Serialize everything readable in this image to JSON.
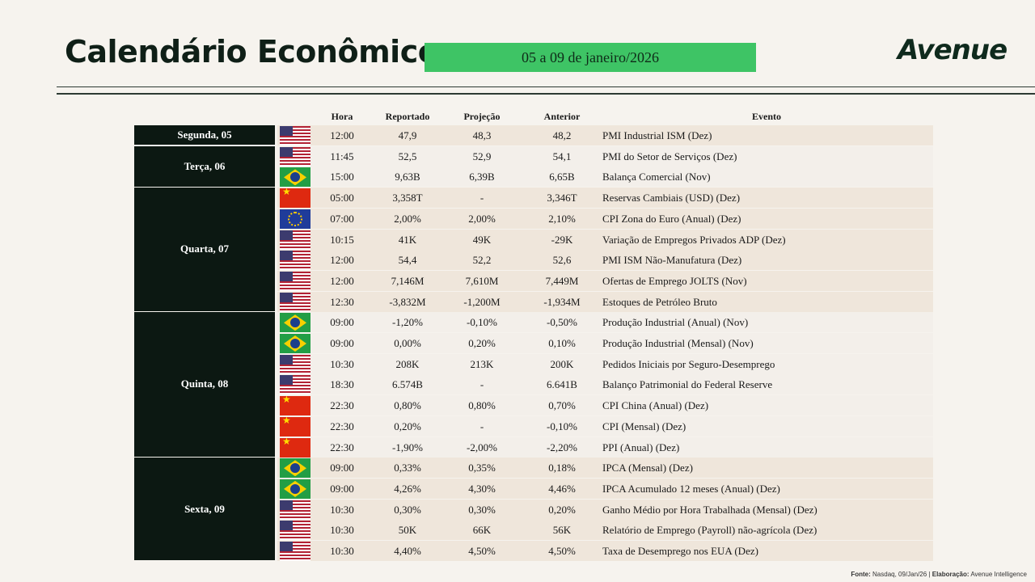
{
  "title": "Calendário Econômico",
  "date_range": "05 a 09 de janeiro/2026",
  "logo_text": "Avenue",
  "columns": {
    "hora": "Hora",
    "reportado": "Reportado",
    "projecao": "Projeção",
    "anterior": "Anterior",
    "evento": "Evento"
  },
  "days": [
    {
      "label": "Segunda, 05",
      "rows": 1
    },
    {
      "label": "Terça, 06",
      "rows": 2
    },
    {
      "label": "Quarta, 07",
      "rows": 6
    },
    {
      "label": "Quinta, 08",
      "rows": 7
    },
    {
      "label": "Sexta, 09",
      "rows": 5
    }
  ],
  "events": [
    {
      "flag": "us-flag-icon",
      "hora": "12:00",
      "reportado": "47,9",
      "projecao": "48,3",
      "anterior": "48,2",
      "evento": "PMI Industrial ISM (Dez)"
    },
    {
      "flag": "us-flag-icon",
      "hora": "11:45",
      "reportado": "52,5",
      "projecao": "52,9",
      "anterior": "54,1",
      "evento": "PMI do Setor de Serviços (Dez)"
    },
    {
      "flag": "br-flag-icon",
      "hora": "15:00",
      "reportado": "9,63B",
      "projecao": "6,39B",
      "anterior": "6,65B",
      "evento": "Balança Comercial (Nov)"
    },
    {
      "flag": "cn-flag-icon",
      "hora": "05:00",
      "reportado": "3,358T",
      "projecao": "-",
      "anterior": "3,346T",
      "evento": "Reservas Cambiais (USD) (Dez)"
    },
    {
      "flag": "eu-flag-icon",
      "hora": "07:00",
      "reportado": "2,00%",
      "projecao": "2,00%",
      "anterior": "2,10%",
      "evento": "CPI Zona do Euro (Anual) (Dez)"
    },
    {
      "flag": "us-flag-icon",
      "hora": "10:15",
      "reportado": "41K",
      "projecao": "49K",
      "anterior": "-29K",
      "evento": "Variação de Empregos Privados ADP (Dez)"
    },
    {
      "flag": "us-flag-icon",
      "hora": "12:00",
      "reportado": "54,4",
      "projecao": "52,2",
      "anterior": "52,6",
      "evento": "PMI ISM Não-Manufatura (Dez)"
    },
    {
      "flag": "us-flag-icon",
      "hora": "12:00",
      "reportado": "7,146M",
      "projecao": "7,610M",
      "anterior": "7,449M",
      "evento": "Ofertas de Emprego JOLTS (Nov)"
    },
    {
      "flag": "us-flag-icon",
      "hora": "12:30",
      "reportado": "-3,832M",
      "projecao": "-1,200M",
      "anterior": "-1,934M",
      "evento": "Estoques de Petróleo Bruto"
    },
    {
      "flag": "br-flag-icon",
      "hora": "09:00",
      "reportado": "-1,20%",
      "projecao": "-0,10%",
      "anterior": "-0,50%",
      "evento": "Produção Industrial (Anual) (Nov)"
    },
    {
      "flag": "br-flag-icon",
      "hora": "09:00",
      "reportado": "0,00%",
      "projecao": "0,20%",
      "anterior": "0,10%",
      "evento": "Produção Industrial (Mensal) (Nov)"
    },
    {
      "flag": "us-flag-icon",
      "hora": "10:30",
      "reportado": "208K",
      "projecao": "213K",
      "anterior": "200K",
      "evento": "Pedidos Iniciais por Seguro-Desemprego"
    },
    {
      "flag": "us-flag-icon",
      "hora": "18:30",
      "reportado": "6.574B",
      "projecao": "-",
      "anterior": "6.641B",
      "evento": "Balanço Patrimonial do Federal Reserve"
    },
    {
      "flag": "cn-flag-icon",
      "hora": "22:30",
      "reportado": "0,80%",
      "projecao": "0,80%",
      "anterior": "0,70%",
      "evento": "CPI China (Anual) (Dez)"
    },
    {
      "flag": "cn-flag-icon",
      "hora": "22:30",
      "reportado": "0,20%",
      "projecao": "-",
      "anterior": "-0,10%",
      "evento": "CPI (Mensal) (Dez)"
    },
    {
      "flag": "cn-flag-icon",
      "hora": "22:30",
      "reportado": "-1,90%",
      "projecao": "-2,00%",
      "anterior": "-2,20%",
      "evento": "PPI (Anual) (Dez)"
    },
    {
      "flag": "br-flag-icon",
      "hora": "09:00",
      "reportado": "0,33%",
      "projecao": "0,35%",
      "anterior": "0,18%",
      "evento": "IPCA (Mensal) (Dez)"
    },
    {
      "flag": "br-flag-icon",
      "hora": "09:00",
      "reportado": "4,26%",
      "projecao": "4,30%",
      "anterior": "4,46%",
      "evento": "IPCA Acumulado 12 meses (Anual) (Dez)"
    },
    {
      "flag": "us-flag-icon",
      "hora": "10:30",
      "reportado": "0,30%",
      "projecao": "0,30%",
      "anterior": "0,20%",
      "evento": "Ganho Médio por Hora Trabalhada (Mensal) (Dez)"
    },
    {
      "flag": "us-flag-icon",
      "hora": "10:30",
      "reportado": "50K",
      "projecao": "66K",
      "anterior": "56K",
      "evento": "Relatório de Emprego (Payroll) não-agrícola (Dez)"
    },
    {
      "flag": "us-flag-icon",
      "hora": "10:30",
      "reportado": "4,40%",
      "projecao": "4,50%",
      "anterior": "4,50%",
      "evento": "Taxa de Desemprego nos EUA (Dez)"
    }
  ],
  "source": {
    "fonte_label": "Fonte:",
    "fonte_text": "Nasdaq, 09/Jan/26 |",
    "elab_label": "Elaboração:",
    "elab_text": "Avenue Intelligence"
  }
}
